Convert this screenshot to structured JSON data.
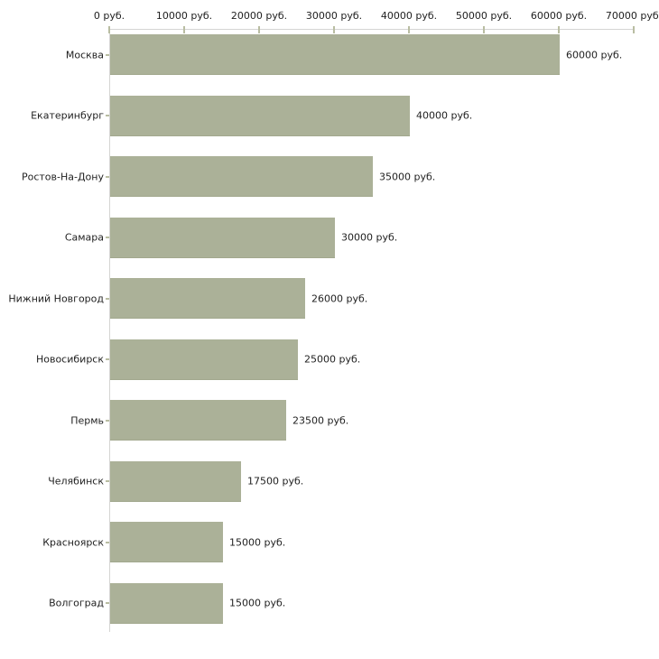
{
  "chart_data": {
    "type": "bar",
    "orientation": "horizontal",
    "title": "",
    "xlabel": "",
    "ylabel": "",
    "categories": [
      "Москва",
      "Екатеринбург",
      "Ростов-На-Дону",
      "Самара",
      "Нижний Новгород",
      "Новосибирск",
      "Пермь",
      "Челябинск",
      "Красноярск",
      "Волгоград"
    ],
    "values": [
      60000,
      40000,
      35000,
      30000,
      26000,
      25000,
      23500,
      17500,
      15000,
      15000
    ],
    "value_labels": [
      "60000 руб.",
      "40000 руб.",
      "35000 руб.",
      "30000 руб.",
      "26000 руб.",
      "25000 руб.",
      "23500 руб.",
      "17500 руб.",
      "15000 руб.",
      "15000 руб."
    ],
    "x_ticks": [
      0,
      10000,
      20000,
      30000,
      40000,
      50000,
      60000,
      70000
    ],
    "x_tick_labels": [
      "0 руб.",
      "10000 руб.",
      "20000 руб.",
      "30000 руб.",
      "40000 руб.",
      "50000 руб.",
      "60000 руб.",
      "70000 руб."
    ],
    "xlim": [
      0,
      70000
    ],
    "unit_suffix": " руб.",
    "grid": false,
    "legend": false,
    "colors": {
      "bar_fill": "#abb198",
      "bar_edge": "#a2a88e",
      "axis_line": "#d5d5d3",
      "tick_mark": "#b9bda2",
      "text": "#1f1f1f",
      "background": "#ffffff"
    }
  }
}
